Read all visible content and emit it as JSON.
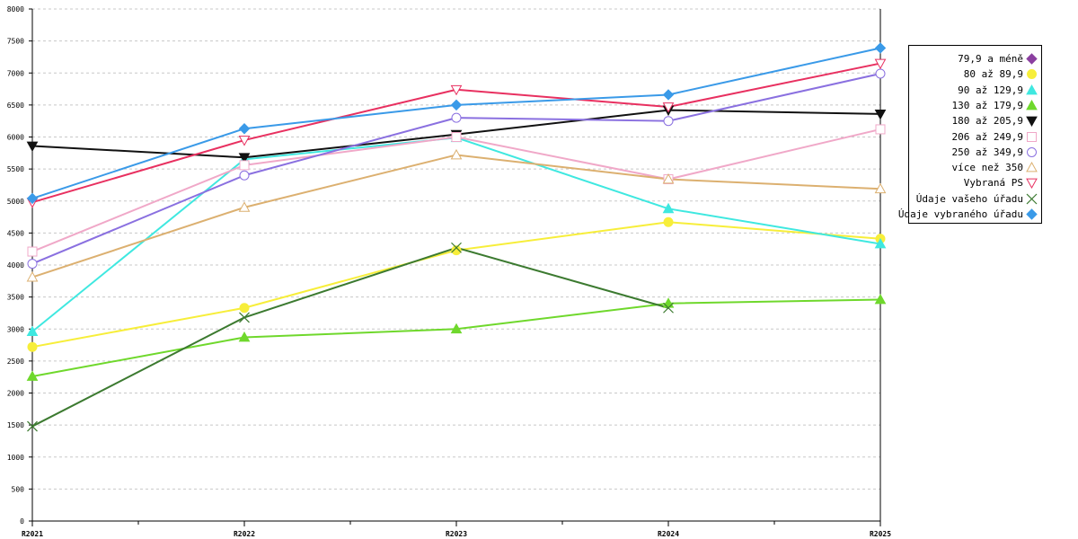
{
  "chart_data": {
    "type": "line",
    "title": "",
    "xlabel": "",
    "ylabel": "",
    "categories": [
      "R2021",
      "R2022",
      "R2023",
      "R2024",
      "R2025"
    ],
    "ylim": [
      0,
      8000
    ],
    "yticks": [
      0,
      500,
      1000,
      1500,
      2000,
      2500,
      3000,
      3500,
      4000,
      4500,
      5000,
      5500,
      6000,
      6500,
      7000,
      7500,
      8000
    ],
    "grid": true,
    "legend_position": "right",
    "series": [
      {
        "name": "79,9 a méně",
        "color": "#8b3fa0",
        "marker": "diamond",
        "values": [
          null,
          null,
          null,
          null,
          null
        ]
      },
      {
        "name": "80 až 89,9",
        "color": "#f7ee3a",
        "marker": "circle",
        "values": [
          2720,
          3330,
          4230,
          4670,
          4410
        ]
      },
      {
        "name": "90 až 129,9",
        "color": "#3fe8e0",
        "marker": "triangle-up",
        "values": [
          2960,
          5650,
          5990,
          4880,
          4330
        ]
      },
      {
        "name": "130 až 179,9",
        "color": "#6fd82c",
        "marker": "triangle-up",
        "values": [
          2260,
          2870,
          3000,
          3400,
          3460
        ]
      },
      {
        "name": "180 až 205,9",
        "color": "#111111",
        "marker": "triangle-down",
        "values": [
          5860,
          5680,
          6040,
          6420,
          6360
        ]
      },
      {
        "name": "206 až 249,9",
        "color": "#f0a8c8",
        "marker": "square-open",
        "values": [
          4210,
          5560,
          6000,
          5340,
          6120
        ]
      },
      {
        "name": "250 až 349,9",
        "color": "#8a70e0",
        "marker": "circle-open",
        "values": [
          4020,
          5400,
          6300,
          6250,
          6990
        ]
      },
      {
        "name": "více než 350",
        "color": "#dcb070",
        "marker": "triangle-up-open",
        "values": [
          3810,
          4900,
          5720,
          5340,
          5190
        ]
      },
      {
        "name": "Vybraná PS",
        "color": "#e83060",
        "marker": "triangle-down-open",
        "values": [
          4980,
          5950,
          6740,
          6470,
          7150
        ]
      },
      {
        "name": "Údaje vašeho úřadu",
        "color": "#3c7a30",
        "marker": "cross",
        "values": [
          1480,
          3180,
          4270,
          3330,
          null
        ]
      },
      {
        "name": "Údaje vybraného úřadu",
        "color": "#3a9ae8",
        "marker": "diamond",
        "values": [
          5040,
          6130,
          6500,
          6660,
          7390
        ]
      }
    ]
  }
}
